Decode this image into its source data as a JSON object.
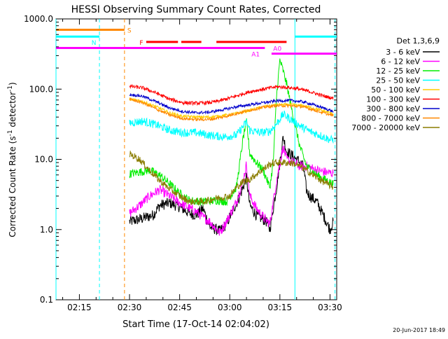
{
  "chart_data": {
    "type": "line",
    "title": "HESSI Observing Summary Count Rates, Corrected",
    "xlabel": "Start Time (17-Oct-14 02:04:02)",
    "ylabel_main": "Corrected Count Rate (s",
    "ylabel_sup1": "-1",
    "ylabel_mid": " detector",
    "ylabel_sup2": "-1",
    "ylabel_end": ")",
    "yscale": "log",
    "ylim": [
      0.1,
      1000
    ],
    "xlim_min": [
      4,
      88
    ],
    "y_ticks": [
      {
        "v": 0.1,
        "label": "0.1"
      },
      {
        "v": 1,
        "label": "1.0"
      },
      {
        "v": 10,
        "label": "10.0"
      },
      {
        "v": 100,
        "label": "100.0"
      },
      {
        "v": 1000,
        "label": "1000.0"
      }
    ],
    "x_ticks": [
      {
        "t": 11,
        "label": "02:15"
      },
      {
        "t": 26,
        "label": "02:30"
      },
      {
        "t": 41,
        "label": "02:45"
      },
      {
        "t": 56,
        "label": "03:00"
      },
      {
        "t": 71,
        "label": "03:15"
      },
      {
        "t": 86,
        "label": "03:30"
      }
    ],
    "legend_title": "Det 1,3,6,9",
    "legend_position": "right",
    "footer_date": "20-Jun-2017 18:49",
    "series": [
      {
        "name": "3 - 6 keV",
        "color": "#000000",
        "noise": 0.08,
        "points": [
          [
            26,
            1.3
          ],
          [
            29,
            1.4
          ],
          [
            33,
            1.6
          ],
          [
            35,
            2.2
          ],
          [
            38,
            2.4
          ],
          [
            41,
            2.1
          ],
          [
            44,
            1.7
          ],
          [
            46,
            1.6
          ],
          [
            48,
            2.0
          ],
          [
            50,
            1.1
          ],
          [
            53,
            0.95
          ],
          [
            55,
            1.2
          ],
          [
            57,
            1.9
          ],
          [
            59,
            3.0
          ],
          [
            61,
            5.5
          ],
          [
            62,
            2.2
          ],
          [
            64,
            1.6
          ],
          [
            67,
            1.3
          ],
          [
            68,
            1.0
          ],
          [
            70,
            4.0
          ],
          [
            72,
            21
          ],
          [
            73,
            13
          ],
          [
            75,
            11
          ],
          [
            77,
            9
          ],
          [
            78,
            8
          ],
          [
            79,
            3.5
          ],
          [
            80,
            3.0
          ],
          [
            82,
            2.5
          ],
          [
            84,
            1.6
          ],
          [
            86,
            1.0
          ],
          [
            87,
            1.3
          ]
        ]
      },
      {
        "name": "6 - 12 keV",
        "color": "#ff00ff",
        "noise": 0.07,
        "points": [
          [
            26,
            1.7
          ],
          [
            29,
            2.2
          ],
          [
            32,
            3.0
          ],
          [
            35,
            3.7
          ],
          [
            38,
            3.0
          ],
          [
            41,
            2.4
          ],
          [
            44,
            2.0
          ],
          [
            46,
            1.8
          ],
          [
            48,
            1.5
          ],
          [
            50,
            1.3
          ],
          [
            53,
            0.9
          ],
          [
            55,
            1.3
          ],
          [
            58,
            2.5
          ],
          [
            60,
            5.0
          ],
          [
            61,
            8.5
          ],
          [
            62,
            3.0
          ],
          [
            64,
            2.0
          ],
          [
            66,
            1.5
          ],
          [
            68,
            1.2
          ],
          [
            70,
            5.0
          ],
          [
            72,
            15
          ],
          [
            73,
            10
          ],
          [
            75,
            9
          ],
          [
            77,
            8
          ],
          [
            79,
            8
          ],
          [
            82,
            7
          ],
          [
            85,
            6.5
          ],
          [
            87,
            6.3
          ]
        ]
      },
      {
        "name": "12 - 25 keV",
        "color": "#00ee00",
        "noise": 0.06,
        "points": [
          [
            26,
            6.2
          ],
          [
            29,
            6.6
          ],
          [
            32,
            7.0
          ],
          [
            35,
            6.0
          ],
          [
            38,
            4.5
          ],
          [
            41,
            3.3
          ],
          [
            44,
            2.6
          ],
          [
            48,
            2.5
          ],
          [
            52,
            2.6
          ],
          [
            55,
            2.5
          ],
          [
            58,
            4.0
          ],
          [
            60,
            20
          ],
          [
            61,
            35
          ],
          [
            62,
            12
          ],
          [
            64,
            9
          ],
          [
            66,
            7
          ],
          [
            68,
            4.0
          ],
          [
            69,
            9
          ],
          [
            70,
            80
          ],
          [
            71,
            260
          ],
          [
            72,
            180
          ],
          [
            73,
            120
          ],
          [
            75,
            40
          ],
          [
            77,
            15
          ],
          [
            79,
            8
          ],
          [
            82,
            6
          ],
          [
            85,
            5
          ],
          [
            87,
            4.4
          ]
        ]
      },
      {
        "name": "25 - 50 keV",
        "color": "#00ffff",
        "noise": 0.06,
        "points": [
          [
            26,
            33
          ],
          [
            30,
            35
          ],
          [
            34,
            31
          ],
          [
            38,
            26
          ],
          [
            42,
            24
          ],
          [
            46,
            24
          ],
          [
            50,
            22
          ],
          [
            54,
            21
          ],
          [
            58,
            22
          ],
          [
            61,
            34
          ],
          [
            62,
            26
          ],
          [
            65,
            24
          ],
          [
            68,
            25
          ],
          [
            70,
            32
          ],
          [
            72,
            44
          ],
          [
            74,
            38
          ],
          [
            77,
            30
          ],
          [
            80,
            25
          ],
          [
            83,
            22
          ],
          [
            86,
            19
          ],
          [
            87,
            19
          ]
        ]
      },
      {
        "name": "50 - 100 keV",
        "color": "#ffcc00",
        "noise": 0.02,
        "points": [
          [
            26,
            72
          ],
          [
            30,
            66
          ],
          [
            34,
            56
          ],
          [
            38,
            46
          ],
          [
            42,
            41
          ],
          [
            46,
            40
          ],
          [
            50,
            40
          ],
          [
            54,
            42
          ],
          [
            58,
            45
          ],
          [
            62,
            50
          ],
          [
            66,
            56
          ],
          [
            70,
            60
          ],
          [
            74,
            60
          ],
          [
            78,
            58
          ],
          [
            82,
            52
          ],
          [
            86,
            46
          ],
          [
            87,
            45
          ]
        ]
      },
      {
        "name": "100 - 300 keV",
        "color": "#ff0000",
        "noise": 0.025,
        "points": [
          [
            26,
            110
          ],
          [
            30,
            104
          ],
          [
            34,
            88
          ],
          [
            38,
            72
          ],
          [
            42,
            64
          ],
          [
            46,
            63
          ],
          [
            50,
            64
          ],
          [
            54,
            70
          ],
          [
            58,
            80
          ],
          [
            62,
            92
          ],
          [
            66,
            100
          ],
          [
            70,
            108
          ],
          [
            73,
            106
          ],
          [
            76,
            102
          ],
          [
            80,
            92
          ],
          [
            84,
            80
          ],
          [
            87,
            74
          ]
        ]
      },
      {
        "name": "300 - 800 keV",
        "color": "#0000cc",
        "noise": 0.02,
        "points": [
          [
            26,
            84
          ],
          [
            30,
            79
          ],
          [
            34,
            66
          ],
          [
            38,
            54
          ],
          [
            42,
            48
          ],
          [
            46,
            46
          ],
          [
            50,
            47
          ],
          [
            54,
            51
          ],
          [
            58,
            56
          ],
          [
            62,
            60
          ],
          [
            66,
            64
          ],
          [
            70,
            68
          ],
          [
            74,
            69
          ],
          [
            78,
            66
          ],
          [
            82,
            58
          ],
          [
            86,
            50
          ],
          [
            87,
            48
          ]
        ]
      },
      {
        "name": "800 - 7000 keV",
        "color": "#ff8800",
        "noise": 0.02,
        "points": [
          [
            26,
            72
          ],
          [
            30,
            64
          ],
          [
            34,
            52
          ],
          [
            38,
            43
          ],
          [
            42,
            38
          ],
          [
            46,
            37
          ],
          [
            50,
            37
          ],
          [
            54,
            40
          ],
          [
            58,
            45
          ],
          [
            62,
            50
          ],
          [
            66,
            55
          ],
          [
            70,
            58
          ],
          [
            74,
            58
          ],
          [
            78,
            56
          ],
          [
            82,
            49
          ],
          [
            86,
            43
          ],
          [
            87,
            42
          ]
        ]
      },
      {
        "name": "7000 - 20000 keV",
        "color": "#8b7d00",
        "noise": 0.05,
        "points": [
          [
            26,
            12
          ],
          [
            29,
            10
          ],
          [
            32,
            7.0
          ],
          [
            35,
            5.0
          ],
          [
            38,
            3.8
          ],
          [
            41,
            3.0
          ],
          [
            44,
            2.5
          ],
          [
            48,
            2.5
          ],
          [
            52,
            2.8
          ],
          [
            56,
            3.0
          ],
          [
            58,
            4.0
          ],
          [
            60,
            4.8
          ],
          [
            62,
            5.2
          ],
          [
            64,
            6.2
          ],
          [
            66,
            7.2
          ],
          [
            68,
            8.5
          ],
          [
            70,
            9.0
          ],
          [
            72,
            9.0
          ],
          [
            75,
            8.8
          ],
          [
            78,
            7.5
          ],
          [
            82,
            5.5
          ],
          [
            85,
            4.5
          ],
          [
            87,
            4.0
          ]
        ]
      }
    ],
    "state_bars": [
      {
        "label": "S",
        "color": "#ff8800",
        "level": 700,
        "ranges": [
          [
            4,
            24.5
          ]
        ]
      },
      {
        "label": "N",
        "color": "#00ffff",
        "level": 560,
        "ranges": [
          [
            4,
            17
          ],
          [
            75.5,
            88
          ]
        ]
      },
      {
        "label": "F",
        "color": "#ff0000",
        "level": 470,
        "ranges": [
          [
            31,
            40.5
          ],
          [
            41.5,
            47.5
          ],
          [
            52,
            73
          ]
        ]
      },
      {
        "label": "A1",
        "color": "#ff00ff",
        "level": 385,
        "ranges": [
          [
            4,
            66.5
          ]
        ]
      },
      {
        "label": "A0",
        "color": "#ff00ff",
        "level": 320,
        "ranges": [
          [
            68.5,
            88
          ]
        ]
      }
    ],
    "vlines": [
      {
        "t": 4,
        "color": "#00ffff",
        "dashed": false
      },
      {
        "t": 17,
        "color": "#00ffff",
        "dashed": true
      },
      {
        "t": 24.5,
        "color": "#ff8800",
        "dashed": true
      },
      {
        "t": 75.5,
        "color": "#00ffff",
        "dashed": false
      },
      {
        "t": 87.5,
        "color": "#00ffff",
        "dashed": true
      }
    ]
  }
}
